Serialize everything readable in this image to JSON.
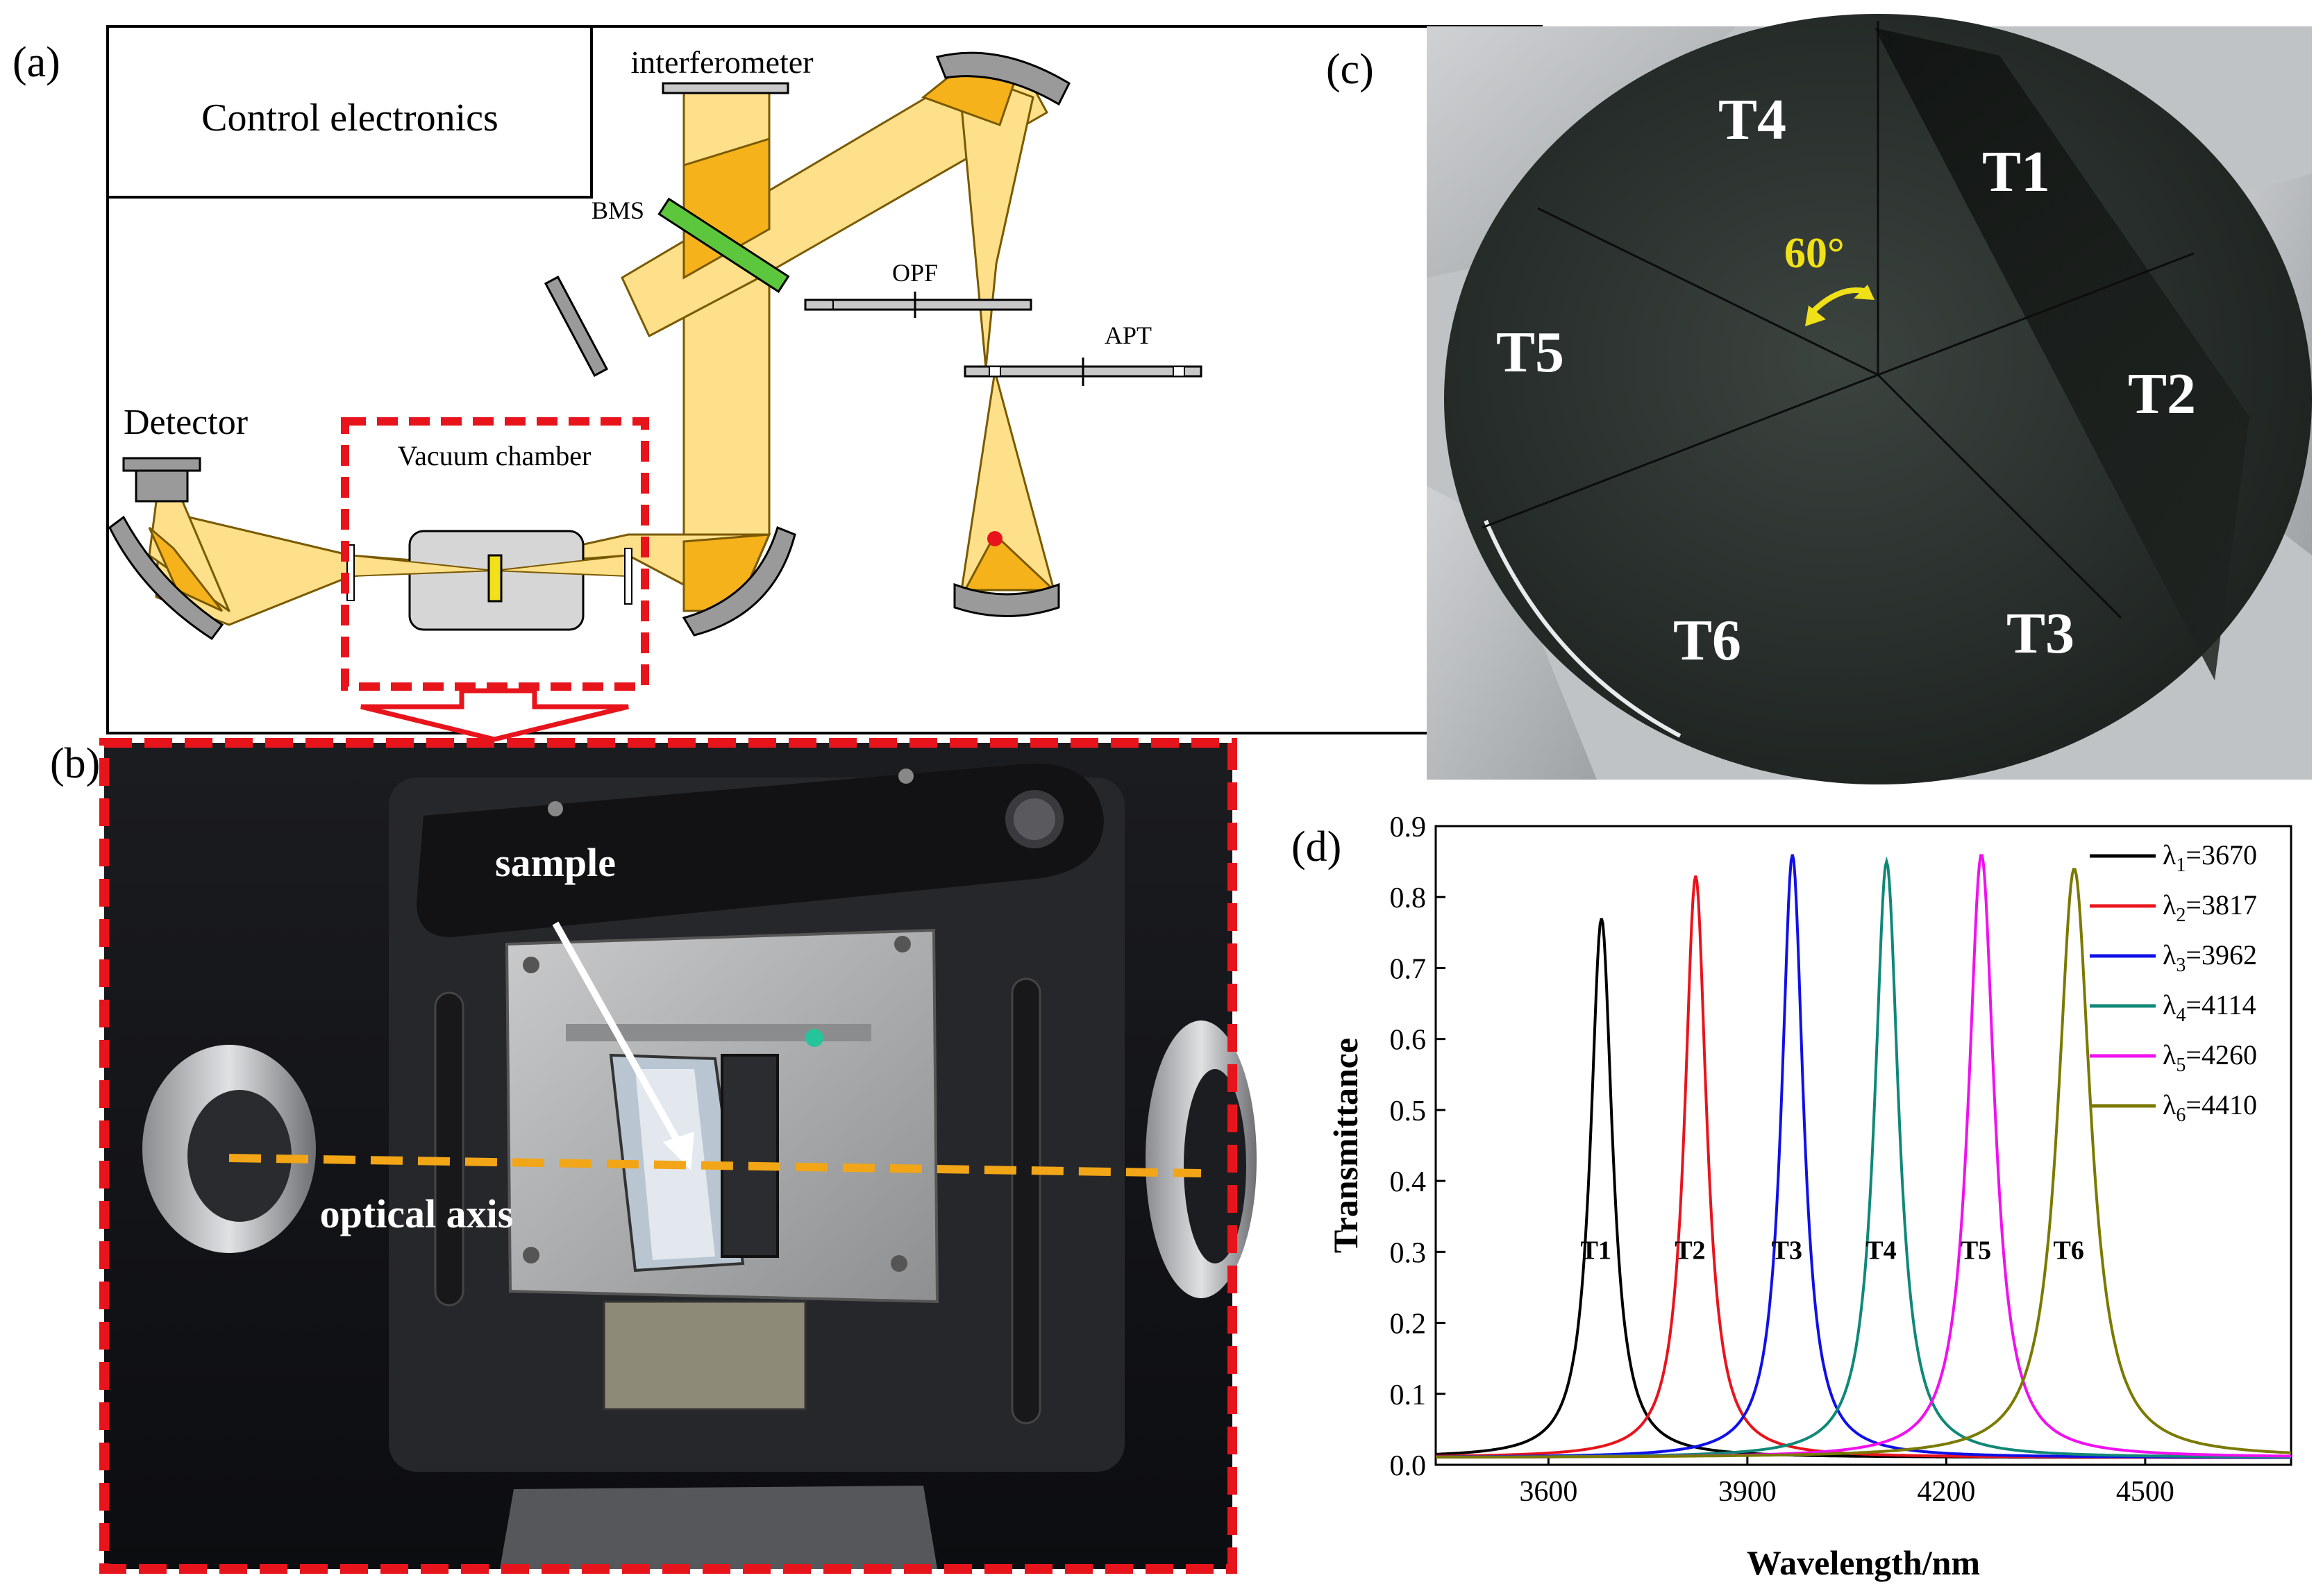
{
  "panel_labels": {
    "a": "(a)",
    "b": "(b)",
    "c": "(c)",
    "d": "(d)"
  },
  "setup": {
    "control_electronics": "Control electronics",
    "interferometer": "interferometer",
    "bms": "BMS",
    "opf": "OPF",
    "apt": "APT",
    "detector": "Detector",
    "vacuum_chamber": "Vacuum chamber"
  },
  "photo_chamber": {
    "sample": "sample",
    "optical_axis": "optical axis"
  },
  "photo_wafer": {
    "segments": [
      "T1",
      "T2",
      "T3",
      "T4",
      "T5",
      "T6"
    ],
    "angle": "60°"
  },
  "colors": {
    "beam": "#FFE08A",
    "beam_dark": "#F5B21B",
    "beam_stroke": "#7a5a00",
    "splitter": "#5CC63C",
    "highlight_red": "#E8141C",
    "axis_orange": "#F2A516",
    "angle_yellow": "#F0E018"
  },
  "chart_data": {
    "type": "line",
    "xlabel": "Wavelength/nm",
    "ylabel": "Transmittance",
    "xlim": [
      3430,
      4720
    ],
    "ylim": [
      0,
      0.9
    ],
    "xticks": [
      3600,
      3900,
      4200,
      4500
    ],
    "yticks": [
      0.0,
      0.1,
      0.2,
      0.3,
      0.4,
      0.5,
      0.6,
      0.7,
      0.8,
      0.9
    ],
    "legend_position": "top-right",
    "series": [
      {
        "name": "λ1=3670",
        "sub": "1",
        "value": "=3670",
        "color": "#000000",
        "peak_x": 3680,
        "peak_y": 0.77,
        "fwhm": 40,
        "label": "T1"
      },
      {
        "name": "λ2=3817",
        "sub": "2",
        "value": "=3817",
        "color": "#E8141C",
        "peak_x": 3822,
        "peak_y": 0.83,
        "fwhm": 40,
        "label": "T2"
      },
      {
        "name": "λ3=3962",
        "sub": "3",
        "value": "=3962",
        "color": "#1010E8",
        "peak_x": 3968,
        "peak_y": 0.86,
        "fwhm": 40,
        "label": "T3"
      },
      {
        "name": "λ4=4114",
        "sub": "4",
        "value": "=4114",
        "color": "#108878",
        "peak_x": 4110,
        "peak_y": 0.85,
        "fwhm": 44,
        "label": "T4"
      },
      {
        "name": "λ5=4260",
        "sub": "5",
        "value": "=4260",
        "color": "#F010F0",
        "peak_x": 4253,
        "peak_y": 0.86,
        "fwhm": 48,
        "label": "T5"
      },
      {
        "name": "λ6=4410",
        "sub": "6",
        "value": "=4410",
        "color": "#7A7A00",
        "peak_x": 4393,
        "peak_y": 0.84,
        "fwhm": 60,
        "label": "T6"
      }
    ]
  }
}
